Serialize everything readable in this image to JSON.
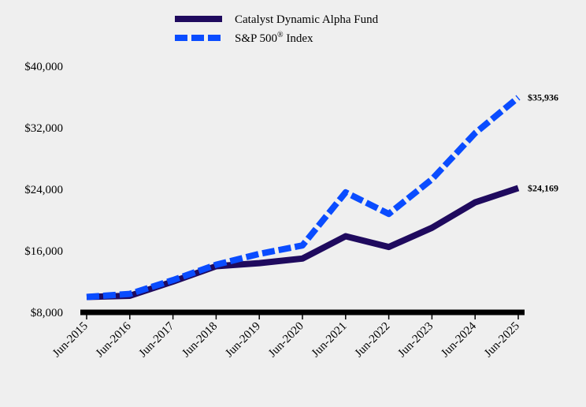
{
  "chart_data": {
    "type": "line",
    "categories": [
      "Jun-2015",
      "Jun-2016",
      "Jun-2017",
      "Jun-2018",
      "Jun-2019",
      "Jun-2020",
      "Jun-2021",
      "Jun-2022",
      "Jun-2023",
      "Jun-2024",
      "Jun-2025"
    ],
    "series": [
      {
        "name": "Catalyst Dynamic Alpha Fund",
        "color": "#1f0a5e",
        "style": "solid",
        "values": [
          10000,
          10150,
          12000,
          14000,
          14400,
          15000,
          17900,
          16500,
          19000,
          22300,
          24169
        ],
        "end_label": "$24,169"
      },
      {
        "name": "S&P 500® Index",
        "color": "#0a4cff",
        "style": "dashed",
        "values": [
          10000,
          10400,
          12200,
          14200,
          15600,
          16700,
          23600,
          20800,
          25300,
          31300,
          35936
        ],
        "end_label": "$35,936"
      }
    ],
    "yticks": [
      "$8,000",
      "$16,000",
      "$24,000",
      "$32,000",
      "$40,000"
    ],
    "ytick_values": [
      8000,
      16000,
      24000,
      32000,
      40000
    ],
    "ylim": [
      8000,
      40000
    ],
    "legend_position": "top",
    "grid": false
  }
}
